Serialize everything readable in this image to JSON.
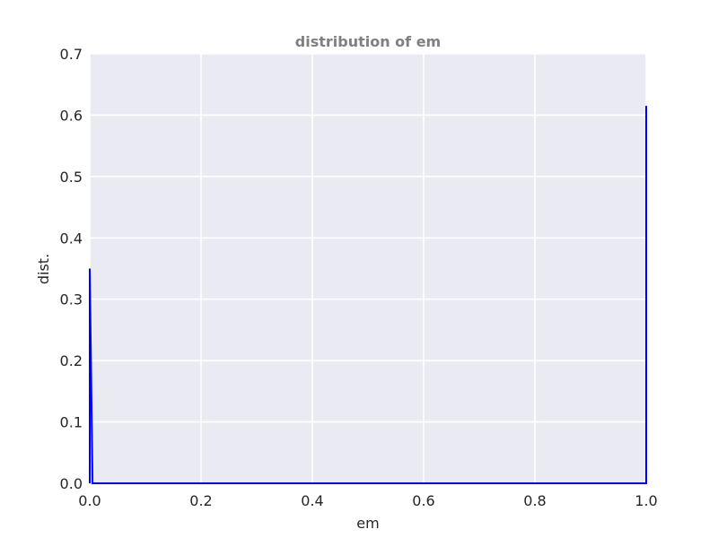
{
  "chart_data": {
    "type": "line",
    "title": "distribution of em",
    "xlabel": "em",
    "ylabel": "dist.",
    "xlim": [
      0.0,
      1.0
    ],
    "ylim": [
      0.0,
      0.7
    ],
    "x_ticks": [
      "0.0",
      "0.2",
      "0.4",
      "0.6",
      "0.8",
      "1.0"
    ],
    "y_ticks": [
      "0.0",
      "0.1",
      "0.2",
      "0.3",
      "0.4",
      "0.5",
      "0.6",
      "0.7"
    ],
    "grid": true,
    "background_color": "#eaeaf2",
    "series": [
      {
        "color": "#0000ff",
        "x": [
          0.0,
          0.0,
          0.005,
          0.005,
          0.995,
          0.995,
          1.0,
          1.0
        ],
        "y": [
          0.0,
          0.35,
          0.0,
          0.0,
          0.0,
          0.0,
          0.0,
          0.615
        ]
      }
    ]
  }
}
